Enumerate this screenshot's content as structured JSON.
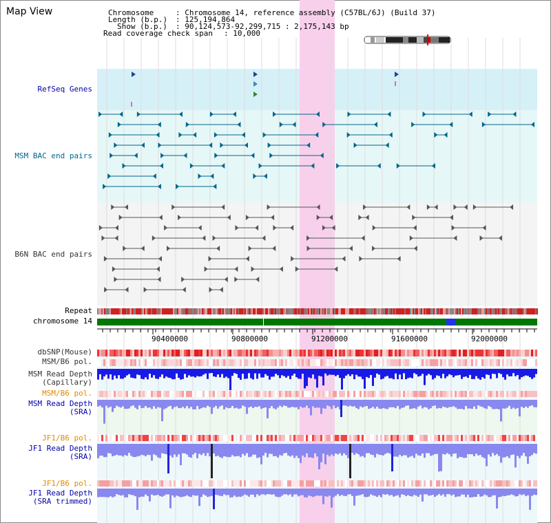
{
  "title": "Map View",
  "header": {
    "chromosome_key": "Chromosome",
    "chromosome_val": ": Chromosome 14, reference assembly (C57BL/6J) (Build 37)",
    "length_key": "Length (b.p.)",
    "length_val": ": 125,194,864",
    "show_key": "Show (b.p.)",
    "show_val": ": 90,124,573-92,299,715 : 2,175,143 bp",
    "span_key": "Read coverage check span",
    "span_val": ": 10,000"
  },
  "tracks": {
    "refseq": "RefSeq Genes",
    "msm_bac": "MSM BAC end pairs",
    "b6n_bac": "B6N BAC end pairs",
    "repeat": "Repeat",
    "chromosome": "chromosome 14",
    "dbsnp": "dbSNP(Mouse)",
    "msm_b6_pol_1": "MSM/B6 pol.",
    "msm_depth_cap_1": "MSM Read Depth",
    "msm_depth_cap_2": "(Capillary)",
    "msm_b6_pol_2": "MSM/B6 pol.",
    "msm_depth_sra_1": "MSM Read Depth",
    "msm_depth_sra_2": "(SRA)",
    "jf1_pol_1": "JF1/B6 pol.",
    "jf1_depth_sra_1": "JF1 Read Depth",
    "jf1_depth_sra_2": "(SRA)",
    "jf1_pol_2": "JF1/B6 pol.",
    "jf1_depth_trim_1": "JF1 Read Depth",
    "jf1_depth_trim_2": "(SRA trimmed)"
  },
  "axis": {
    "ticks": [
      "90400000",
      "90800000",
      "91200000",
      "91600000",
      "92000000"
    ]
  },
  "colors": {
    "refseq_bg": "#d6f0f8",
    "msm_bg": "#e6f7f7",
    "b6n_bg": "#f4f4f4",
    "highlight": "#f8d0ec",
    "msm_feature": "#006688",
    "b6n_feature": "#555555",
    "chromosome_green": "#007700",
    "depth_blue": "#1a1ae6",
    "depth_light": "#8888ee"
  }
}
